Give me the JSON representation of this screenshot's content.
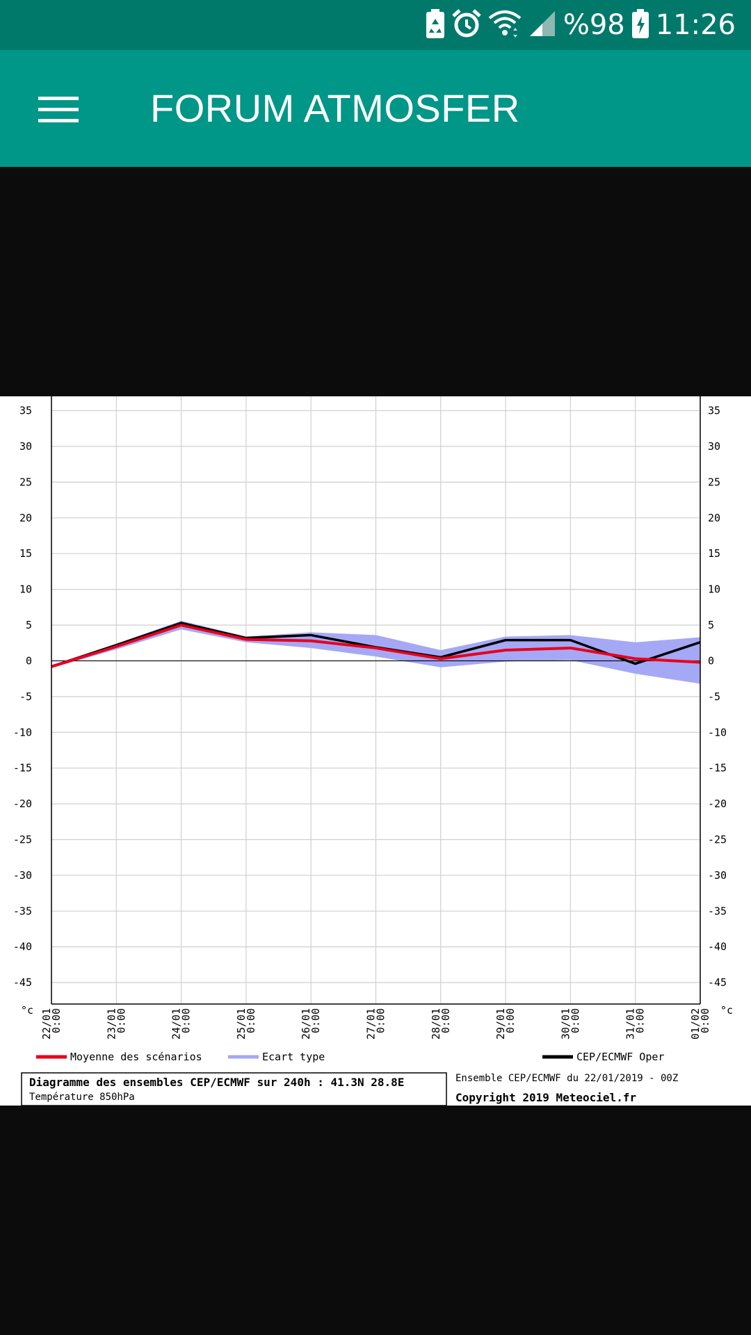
{
  "status_bar": {
    "battery_pct": "%98",
    "time": "11:26",
    "icons": [
      "battery-saver-icon",
      "alarm-icon",
      "wifi-icon",
      "signal-icon",
      "battery-charging-icon"
    ]
  },
  "app_bar": {
    "title": "FORUM ATMOSFER",
    "menu_icon": "hamburger-menu-icon"
  },
  "chart_data": {
    "type": "line",
    "title": "Diagramme des ensembles CEP/ECMWF sur 240h : 41.3N 28.8E",
    "subtitle": "Température 850hPa",
    "run_info": "Ensemble CEP/ECMWF du 22/01/2019 - 00Z",
    "copyright": "Copyright 2019 Meteociel.fr",
    "y_unit": "°c",
    "ylim": [
      -48,
      37
    ],
    "y_ticks": [
      35,
      30,
      25,
      20,
      15,
      10,
      5,
      0,
      -5,
      -10,
      -15,
      -20,
      -25,
      -30,
      -35,
      -40,
      -45
    ],
    "x_ticks": [
      {
        "date": "22/01",
        "time": "0:00"
      },
      {
        "date": "23/01",
        "time": "0:00"
      },
      {
        "date": "24/01",
        "time": "0:00"
      },
      {
        "date": "25/01",
        "time": "0:00"
      },
      {
        "date": "26/01",
        "time": "0:00"
      },
      {
        "date": "27/01",
        "time": "0:00"
      },
      {
        "date": "28/01",
        "time": "0:00"
      },
      {
        "date": "29/01",
        "time": "0:00"
      },
      {
        "date": "30/01",
        "time": "0:00"
      },
      {
        "date": "31/01",
        "time": "0:00"
      },
      {
        "date": "01/02",
        "time": "0:00"
      }
    ],
    "grid": true,
    "legend_position": "bottom",
    "series": [
      {
        "name": "Moyenne des scénarios",
        "color": "#e8001c",
        "values": [
          -0.8,
          2.0,
          5.0,
          3.0,
          2.8,
          1.8,
          0.3,
          1.5,
          1.8,
          0.3,
          -0.2
        ]
      },
      {
        "name": "CEP/ECMWF Oper",
        "color": "#000000",
        "values": [
          -0.8,
          2.2,
          5.3,
          3.2,
          3.6,
          1.9,
          0.5,
          2.9,
          2.9,
          -0.4,
          2.6
        ]
      }
    ],
    "band": {
      "name": "Ecart type",
      "color": "#a5a8f5",
      "upper": [
        -0.6,
        2.4,
        5.6,
        3.4,
        4.0,
        3.6,
        1.5,
        3.4,
        3.6,
        2.6,
        3.3
      ],
      "lower": [
        -1.0,
        1.6,
        4.4,
        2.6,
        1.8,
        0.6,
        -0.9,
        -0.1,
        0.1,
        -1.8,
        -3.2
      ]
    }
  }
}
